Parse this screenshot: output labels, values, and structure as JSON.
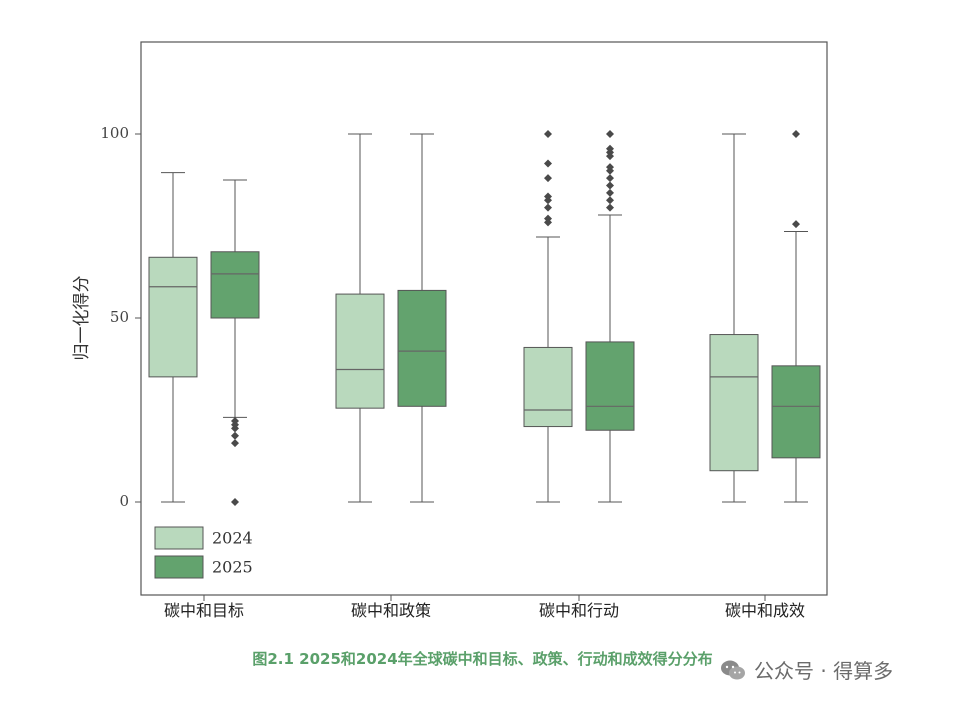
{
  "chart_data": {
    "type": "box",
    "ylabel": "归一化得分",
    "xlabel": "",
    "ylim": [
      -25,
      125
    ],
    "yticks": [
      0,
      50,
      100
    ],
    "categories": [
      "碳中和目标",
      "碳中和政策",
      "碳中和行动",
      "碳中和成效"
    ],
    "series": [
      {
        "name": "2024",
        "color": "#b9d9bd",
        "boxes": [
          {
            "whisker_low": 0,
            "q1": 34,
            "median": 58.5,
            "q3": 66.5,
            "whisker_high": 89.5,
            "outliers": []
          },
          {
            "whisker_low": 0,
            "q1": 25.5,
            "median": 36,
            "q3": 56.5,
            "whisker_high": 100,
            "outliers": []
          },
          {
            "whisker_low": 0,
            "q1": 20.5,
            "median": 25,
            "q3": 42,
            "whisker_high": 72,
            "outliers": [
              76,
              77,
              80,
              82,
              83,
              88,
              92,
              100
            ]
          },
          {
            "whisker_low": 0,
            "q1": 8.5,
            "median": 34,
            "q3": 45.5,
            "whisker_high": 100,
            "outliers": []
          }
        ]
      },
      {
        "name": "2025",
        "color": "#63a36e",
        "boxes": [
          {
            "whisker_low": 23,
            "q1": 50,
            "median": 62,
            "q3": 68,
            "whisker_high": 87.5,
            "outliers": [
              0,
              16,
              18,
              20,
              21,
              22
            ]
          },
          {
            "whisker_low": 0,
            "q1": 26,
            "median": 41,
            "q3": 57.5,
            "whisker_high": 100,
            "outliers": []
          },
          {
            "whisker_low": 0,
            "q1": 19.5,
            "median": 26,
            "q3": 43.5,
            "whisker_high": 78,
            "outliers": [
              80,
              82,
              84,
              86,
              88,
              90,
              91,
              94,
              95,
              96,
              100
            ]
          },
          {
            "whisker_low": 0,
            "q1": 12,
            "median": 26,
            "q3": 37,
            "whisker_high": 73.5,
            "outliers": [
              75.5,
              100
            ]
          }
        ]
      }
    ],
    "legend": {
      "placement": "bottom-left",
      "entries": [
        "2024",
        "2025"
      ]
    },
    "grid": false
  },
  "caption": "图2.1 2025和2024年全球碳中和目标、政策、行动和成效得分分布",
  "watermark": "公众号 · 得算多"
}
